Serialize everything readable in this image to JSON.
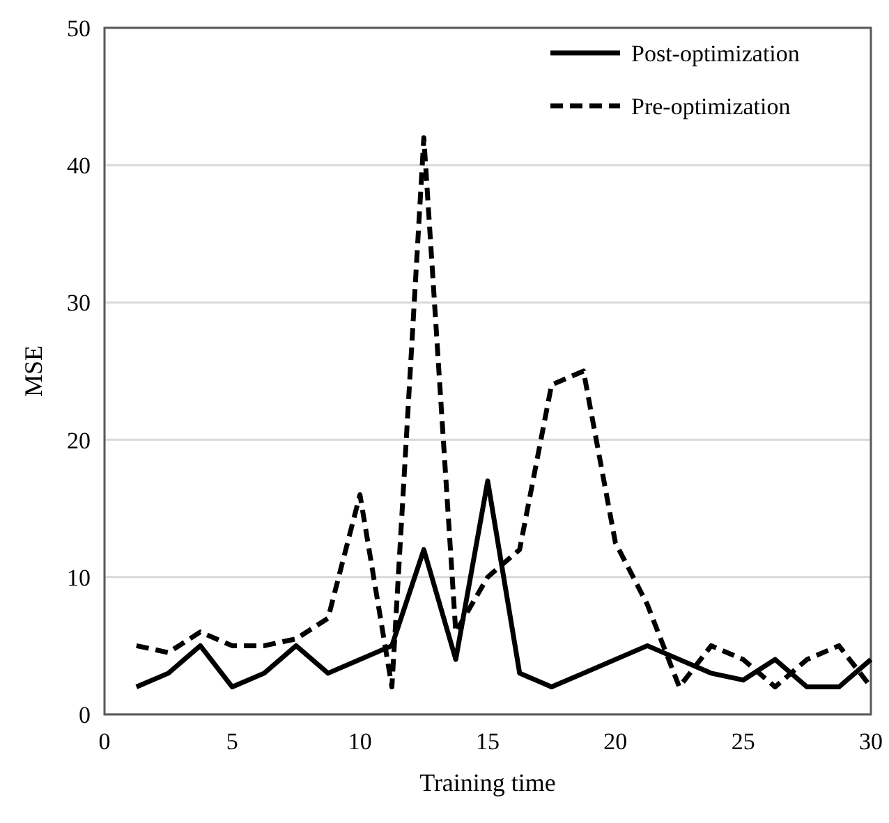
{
  "chart_data": {
    "type": "line",
    "xlabel": "Training time",
    "ylabel": "MSE",
    "x": [
      1.25,
      2.5,
      3.75,
      5,
      6.25,
      7.5,
      8.75,
      10,
      11.25,
      12.5,
      13.75,
      15,
      16.25,
      17.5,
      18.75,
      20,
      21.25,
      22.5,
      23.75,
      25,
      26.25,
      27.5,
      28.75,
      30
    ],
    "series": [
      {
        "name": "Post-optimization",
        "color": "#000000",
        "line_style": "solid",
        "values": [
          2,
          3,
          5,
          2,
          3,
          5,
          3,
          4,
          5,
          12,
          4,
          17,
          3,
          2,
          3,
          4,
          5,
          4,
          3,
          2.5,
          4,
          2,
          2,
          4
        ]
      },
      {
        "name": "Pre-optimization",
        "color": "#000000",
        "line_style": "dashed",
        "values": [
          5,
          4.5,
          6,
          5,
          5,
          5.5,
          7,
          16,
          2,
          42,
          6,
          10,
          12,
          24,
          25,
          12.5,
          8,
          2,
          5,
          4,
          2,
          4,
          5,
          2
        ]
      }
    ],
    "xlim": [
      0,
      30
    ],
    "xticks": [
      0,
      5,
      10,
      15,
      20,
      25,
      30
    ],
    "ylim": [
      0,
      50
    ],
    "yticks": [
      0,
      10,
      20,
      30,
      40,
      50
    ],
    "grid": "y",
    "legend": "top right",
    "marker": "none"
  }
}
